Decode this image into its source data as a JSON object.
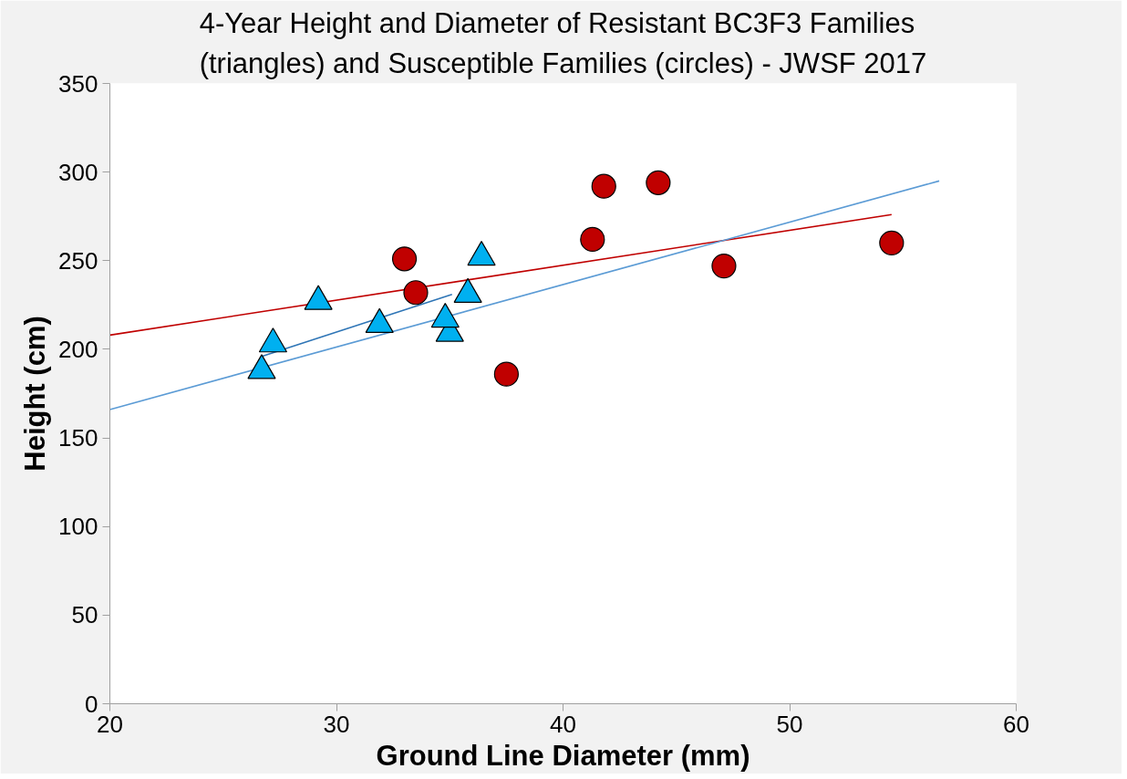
{
  "chart_data": {
    "type": "scatter",
    "title": "4-Year Height and Diameter of Resistant BC3F3 Families (triangles) and Susceptible Families (circles) - JWSF 2017",
    "xlabel": "Ground Line Diameter (mm)",
    "ylabel": "Height (cm)",
    "xlim": [
      20,
      60
    ],
    "xticks": [
      20,
      30,
      40,
      50,
      60
    ],
    "ylim": [
      0,
      350
    ],
    "yticks": [
      0,
      50,
      100,
      150,
      200,
      250,
      300,
      350
    ],
    "grid": false,
    "series": [
      {
        "marker": "triangle",
        "color": "#00b0f0",
        "x": [
          26.7,
          27.2,
          29.2,
          31.9,
          35.0,
          34.8,
          35.8,
          36.4
        ],
        "values": [
          188,
          203,
          227,
          214,
          209,
          217,
          231,
          252
        ]
      },
      {
        "marker": "circle",
        "color": "#c00000",
        "x": [
          33.0,
          33.5,
          37.5,
          41.3,
          41.8,
          44.2,
          47.1,
          54.5
        ],
        "values": [
          251,
          232,
          186,
          262,
          292,
          294,
          247,
          260
        ]
      },
      {
        "type": "line",
        "color": "#c00000",
        "x": [
          20,
          54.5
        ],
        "values": [
          208,
          276
        ]
      },
      {
        "type": "line",
        "color": "#5b9bd5",
        "x": [
          20,
          56.6
        ],
        "values": [
          166,
          295
        ]
      },
      {
        "type": "line",
        "color": "#2e75b6",
        "x": [
          26.7,
          35.1
        ],
        "values": [
          196,
          231
        ]
      }
    ]
  }
}
